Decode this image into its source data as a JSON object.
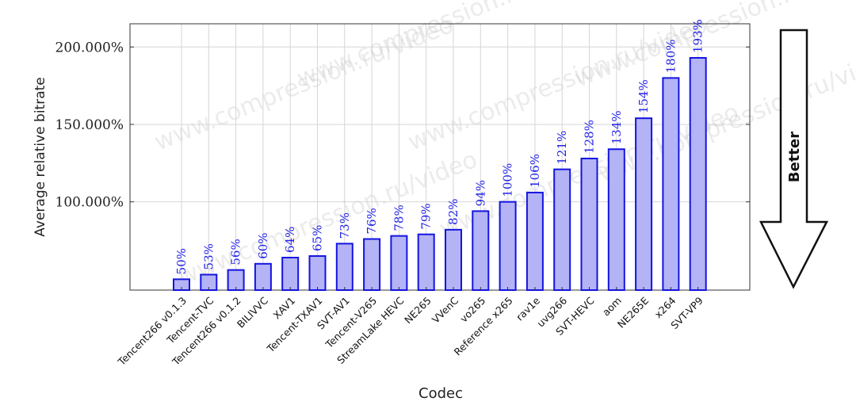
{
  "watermark": "www.compression.ru/video",
  "arrow_label": "Better",
  "chart_data": {
    "type": "bar",
    "title": "",
    "xlabel": "Codec",
    "ylabel": "Average relative bitrate",
    "ylim": [
      0.43,
      2.15
    ],
    "yticks": [
      1.0,
      1.5,
      2.0
    ],
    "ytick_labels": [
      "100.000%",
      "150.000%",
      "200.000%"
    ],
    "grid": true,
    "bar_color": "#b3b3f5",
    "bar_edge_color": "#1414e0",
    "label_color": "#2323e6",
    "categories": [
      "Tencent266 v0.1.3",
      "Tencent-TVC",
      "Tencent266 v0.1.2",
      "BILIVVC",
      "XAV1",
      "Tencent-TXAV1",
      "SVT-AV1",
      "Tencent-V265",
      "StreamLake HEVC",
      "NE265",
      "VVenC",
      "vo265",
      "Reference x265",
      "rav1e",
      "uvg266",
      "SVT-HEVC",
      "aom",
      "NE265E",
      "x264",
      "SVT-VP9"
    ],
    "values": [
      0.5,
      0.53,
      0.56,
      0.6,
      0.64,
      0.65,
      0.73,
      0.76,
      0.78,
      0.79,
      0.82,
      0.94,
      1.0,
      1.06,
      1.21,
      1.28,
      1.34,
      1.54,
      1.8,
      1.93
    ],
    "value_labels": [
      "50%",
      "53%",
      "56%",
      "60%",
      "64%",
      "65%",
      "73%",
      "76%",
      "78%",
      "79%",
      "82%",
      "94%",
      "100%",
      "106%",
      "121%",
      "128%",
      "134%",
      "154%",
      "180%",
      "193%"
    ]
  }
}
